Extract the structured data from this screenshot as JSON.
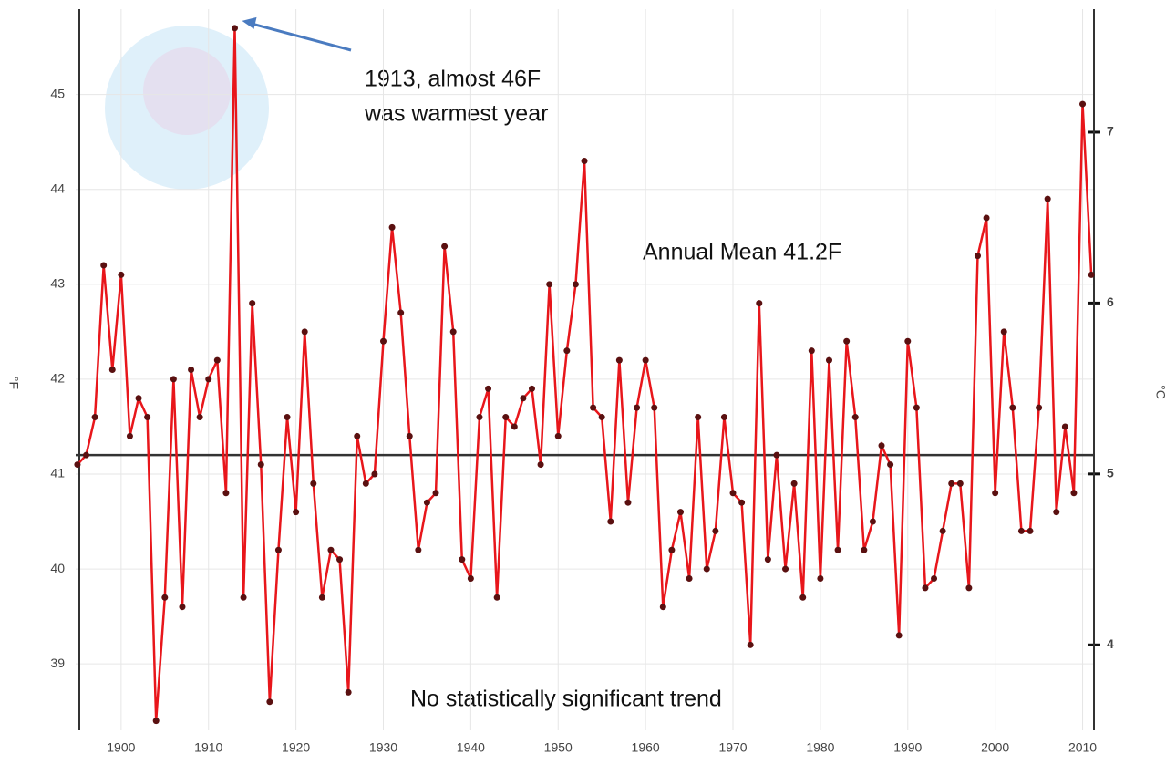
{
  "chart_data": {
    "type": "line",
    "x": [
      1895,
      1896,
      1897,
      1898,
      1899,
      1900,
      1901,
      1902,
      1903,
      1904,
      1905,
      1906,
      1907,
      1908,
      1909,
      1910,
      1911,
      1912,
      1913,
      1914,
      1915,
      1916,
      1917,
      1918,
      1919,
      1920,
      1921,
      1922,
      1923,
      1924,
      1925,
      1926,
      1927,
      1928,
      1929,
      1930,
      1931,
      1932,
      1933,
      1934,
      1935,
      1936,
      1937,
      1938,
      1939,
      1940,
      1941,
      1942,
      1943,
      1944,
      1945,
      1946,
      1947,
      1948,
      1949,
      1950,
      1951,
      1952,
      1953,
      1954,
      1955,
      1956,
      1957,
      1958,
      1959,
      1960,
      1961,
      1962,
      1963,
      1964,
      1965,
      1966,
      1967,
      1968,
      1969,
      1970,
      1971,
      1972,
      1973,
      1974,
      1975,
      1976,
      1977,
      1978,
      1979,
      1980,
      1981,
      1982,
      1983,
      1984,
      1985,
      1986,
      1987,
      1988,
      1989,
      1990,
      1991,
      1992,
      1993,
      1994,
      1995,
      1996,
      1997,
      1998,
      1999,
      2000,
      2001,
      2002,
      2003,
      2004,
      2005,
      2006,
      2007,
      2008,
      2009,
      2010,
      2011
    ],
    "values": [
      41.1,
      41.2,
      41.6,
      43.2,
      42.1,
      43.1,
      41.4,
      41.8,
      41.6,
      38.4,
      39.7,
      42.0,
      39.6,
      42.1,
      41.6,
      42.0,
      42.2,
      40.8,
      45.7,
      39.7,
      42.8,
      41.1,
      38.6,
      40.2,
      41.6,
      40.6,
      42.5,
      40.9,
      39.7,
      40.2,
      40.1,
      38.7,
      41.4,
      40.9,
      41.0,
      42.4,
      43.6,
      42.7,
      41.4,
      40.2,
      40.7,
      40.8,
      43.4,
      42.5,
      40.1,
      39.9,
      41.6,
      41.9,
      39.7,
      41.6,
      41.5,
      41.8,
      41.9,
      41.1,
      43.0,
      41.4,
      42.3,
      43.0,
      44.3,
      41.7,
      41.6,
      40.5,
      42.2,
      40.7,
      41.7,
      42.2,
      41.7,
      39.6,
      40.2,
      40.6,
      39.9,
      41.6,
      40.0,
      40.4,
      41.6,
      40.8,
      40.7,
      39.2,
      42.8,
      40.1,
      41.2,
      40.0,
      40.9,
      39.7,
      42.3,
      39.9,
      42.2,
      40.2,
      42.4,
      41.6,
      40.2,
      40.5,
      41.3,
      41.1,
      39.3,
      42.4,
      41.7,
      39.8,
      39.9,
      40.4,
      40.9,
      40.9,
      39.8,
      43.3,
      43.7,
      40.8,
      42.5,
      41.7,
      40.4,
      40.4,
      41.7,
      43.9,
      40.6,
      41.5,
      40.8,
      44.9,
      43.1
    ],
    "color": "#e8161b",
    "marker_color": "#5a1010",
    "xlim": [
      1894.8,
      2011.3
    ],
    "xticks": [
      1900,
      1910,
      1920,
      1930,
      1940,
      1950,
      1960,
      1970,
      1980,
      1990,
      2000,
      2010
    ],
    "ylim": [
      38.3,
      45.9
    ],
    "yticks": [
      39,
      40,
      41,
      42,
      43,
      44,
      45
    ],
    "y2lim": [
      3.5,
      7.72
    ],
    "y2ticks": [
      4,
      5,
      6,
      7
    ],
    "ylabel": "°F",
    "y2label": "°C",
    "mean": 41.2,
    "mean_label": "Annual Mean 41.2F",
    "annotation": [
      "1913, almost 46F",
      "was warmest year"
    ],
    "footnote": "No statistically significant trend",
    "grid": true
  }
}
